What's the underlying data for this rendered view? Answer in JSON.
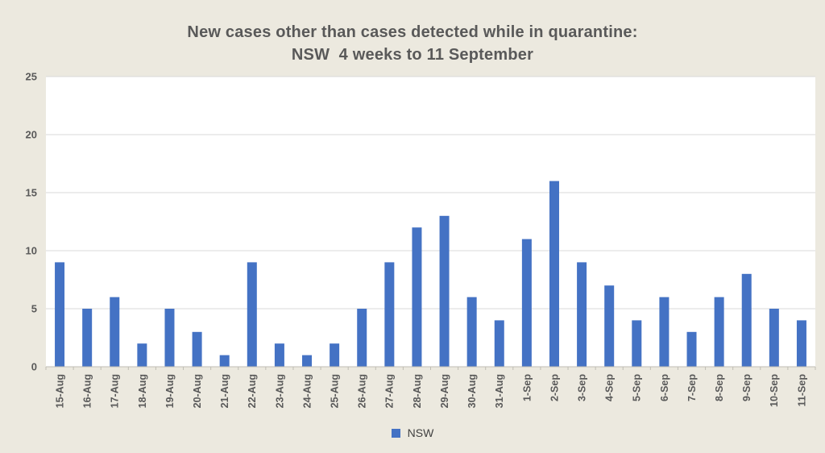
{
  "title": {
    "line1": "New cases other than cases detected while in quarantine:",
    "line2": "NSW  4 weeks to 11 September"
  },
  "legend": {
    "label": "NSW"
  },
  "colors": {
    "background": "#ece9df",
    "plot_background": "#ffffff",
    "bar": "#4472c4",
    "gridline": "#d9d9d9",
    "axis_line": "#bfbdb4",
    "tick_mark": "#bfbdb4",
    "axis_text": "#595959",
    "title_text": "#595959",
    "legend_text": "#404040"
  },
  "chart_data": {
    "type": "bar",
    "title": "New cases other than cases detected while in quarantine: NSW 4 weeks to 11 September",
    "xlabel": "",
    "ylabel": "",
    "categories": [
      "15-Aug",
      "16-Aug",
      "17-Aug",
      "18-Aug",
      "19-Aug",
      "20-Aug",
      "21-Aug",
      "22-Aug",
      "23-Aug",
      "24-Aug",
      "25-Aug",
      "26-Aug",
      "27-Aug",
      "28-Aug",
      "29-Aug",
      "30-Aug",
      "31-Aug",
      "1-Sep",
      "2-Sep",
      "3-Sep",
      "4-Sep",
      "5-Sep",
      "6-Sep",
      "7-Sep",
      "8-Sep",
      "9-Sep",
      "10-Sep",
      "11-Sep"
    ],
    "series": [
      {
        "name": "NSW",
        "values": [
          9,
          5,
          6,
          2,
          5,
          3,
          1,
          9,
          2,
          1,
          2,
          5,
          9,
          12,
          13,
          6,
          4,
          11,
          16,
          9,
          7,
          4,
          6,
          3,
          6,
          8,
          5,
          4
        ]
      }
    ],
    "ylim": [
      0,
      25
    ],
    "ytick_interval": 5,
    "yticks": [
      0,
      5,
      10,
      15,
      20,
      25
    ],
    "grid": "horizontal",
    "legend_position": "bottom"
  }
}
